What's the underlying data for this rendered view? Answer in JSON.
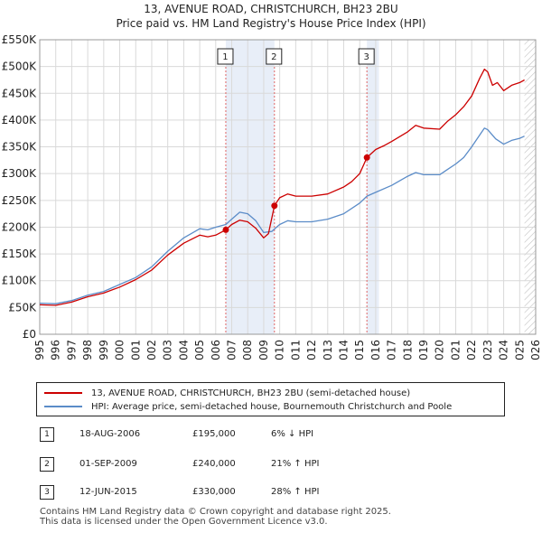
{
  "header": {
    "title": "13, AVENUE ROAD, CHRISTCHURCH, BH23 2BU",
    "subtitle": "Price paid vs. HM Land Registry's House Price Index (HPI)"
  },
  "colors": {
    "property_line": "#cc0000",
    "hpi_line": "#5b8cc8",
    "shade": "#e8eef8",
    "marker_line": "#e06666",
    "hatch": "#999999"
  },
  "chart_data": {
    "type": "line",
    "title": "Price paid vs. HM Land Registry's House Price Index (HPI)",
    "xlabel": "",
    "ylabel": "",
    "xlim": [
      1995,
      2026
    ],
    "ylim": [
      0,
      550000
    ],
    "grid": true,
    "x_ticks": [
      "1995",
      "1996",
      "1997",
      "1998",
      "1999",
      "2000",
      "2001",
      "2002",
      "2003",
      "2004",
      "2005",
      "2006",
      "2007",
      "2008",
      "2009",
      "2010",
      "2011",
      "2012",
      "2013",
      "2014",
      "2015",
      "2016",
      "2017",
      "2018",
      "2019",
      "2020",
      "2021",
      "2022",
      "2023",
      "2024",
      "2025",
      "2026"
    ],
    "y_ticks": [
      {
        "value": 0,
        "label": "£0"
      },
      {
        "value": 50000,
        "label": "£50K"
      },
      {
        "value": 100000,
        "label": "£100K"
      },
      {
        "value": 150000,
        "label": "£150K"
      },
      {
        "value": 200000,
        "label": "£200K"
      },
      {
        "value": 250000,
        "label": "£250K"
      },
      {
        "value": 300000,
        "label": "£300K"
      },
      {
        "value": 350000,
        "label": "£350K"
      },
      {
        "value": 400000,
        "label": "£400K"
      },
      {
        "value": 450000,
        "label": "£450K"
      },
      {
        "value": 500000,
        "label": "£500K"
      },
      {
        "value": 550000,
        "label": "£550K"
      }
    ],
    "series": [
      {
        "name": "13, AVENUE ROAD, CHRISTCHURCH, BH23 2BU (semi-detached house)",
        "color": "#cc0000",
        "points": [
          [
            1995.0,
            55000
          ],
          [
            1996.0,
            54000
          ],
          [
            1997.0,
            60000
          ],
          [
            1998.0,
            70000
          ],
          [
            1999.0,
            77000
          ],
          [
            2000.0,
            88000
          ],
          [
            2001.0,
            102000
          ],
          [
            2002.0,
            120000
          ],
          [
            2003.0,
            148000
          ],
          [
            2004.0,
            170000
          ],
          [
            2005.0,
            185000
          ],
          [
            2005.5,
            182000
          ],
          [
            2006.0,
            185000
          ],
          [
            2006.63,
            195000
          ],
          [
            2007.0,
            205000
          ],
          [
            2007.5,
            213000
          ],
          [
            2008.0,
            210000
          ],
          [
            2008.5,
            198000
          ],
          [
            2009.0,
            180000
          ],
          [
            2009.3,
            188000
          ],
          [
            2009.67,
            240000
          ],
          [
            2010.0,
            255000
          ],
          [
            2010.5,
            262000
          ],
          [
            2011.0,
            258000
          ],
          [
            2012.0,
            258000
          ],
          [
            2013.0,
            262000
          ],
          [
            2014.0,
            275000
          ],
          [
            2014.5,
            285000
          ],
          [
            2015.0,
            300000
          ],
          [
            2015.45,
            330000
          ],
          [
            2016.0,
            345000
          ],
          [
            2016.5,
            352000
          ],
          [
            2017.0,
            360000
          ],
          [
            2018.0,
            378000
          ],
          [
            2018.5,
            390000
          ],
          [
            2019.0,
            385000
          ],
          [
            2020.0,
            383000
          ],
          [
            2020.5,
            398000
          ],
          [
            2021.0,
            410000
          ],
          [
            2021.5,
            425000
          ],
          [
            2022.0,
            445000
          ],
          [
            2022.5,
            478000
          ],
          [
            2022.8,
            495000
          ],
          [
            2023.0,
            490000
          ],
          [
            2023.3,
            465000
          ],
          [
            2023.6,
            470000
          ],
          [
            2024.0,
            455000
          ],
          [
            2024.5,
            465000
          ],
          [
            2025.0,
            470000
          ],
          [
            2025.3,
            475000
          ]
        ]
      },
      {
        "name": "HPI: Average price, semi-detached house, Bournemouth Christchurch and Poole",
        "color": "#5b8cc8",
        "points": [
          [
            1995.0,
            58000
          ],
          [
            1996.0,
            57000
          ],
          [
            1997.0,
            63000
          ],
          [
            1998.0,
            73000
          ],
          [
            1999.0,
            80000
          ],
          [
            2000.0,
            93000
          ],
          [
            2001.0,
            106000
          ],
          [
            2002.0,
            126000
          ],
          [
            2003.0,
            155000
          ],
          [
            2004.0,
            180000
          ],
          [
            2005.0,
            197000
          ],
          [
            2005.5,
            195000
          ],
          [
            2006.0,
            200000
          ],
          [
            2006.63,
            205000
          ],
          [
            2007.0,
            215000
          ],
          [
            2007.5,
            228000
          ],
          [
            2008.0,
            225000
          ],
          [
            2008.5,
            212000
          ],
          [
            2009.0,
            190000
          ],
          [
            2009.5,
            192000
          ],
          [
            2010.0,
            205000
          ],
          [
            2010.5,
            212000
          ],
          [
            2011.0,
            210000
          ],
          [
            2012.0,
            210000
          ],
          [
            2013.0,
            215000
          ],
          [
            2014.0,
            225000
          ],
          [
            2015.0,
            245000
          ],
          [
            2015.45,
            258000
          ],
          [
            2016.0,
            265000
          ],
          [
            2017.0,
            278000
          ],
          [
            2018.0,
            295000
          ],
          [
            2018.5,
            302000
          ],
          [
            2019.0,
            298000
          ],
          [
            2020.0,
            298000
          ],
          [
            2020.5,
            308000
          ],
          [
            2021.0,
            318000
          ],
          [
            2021.5,
            330000
          ],
          [
            2022.0,
            350000
          ],
          [
            2022.5,
            372000
          ],
          [
            2022.8,
            385000
          ],
          [
            2023.0,
            382000
          ],
          [
            2023.5,
            365000
          ],
          [
            2024.0,
            355000
          ],
          [
            2024.5,
            362000
          ],
          [
            2025.0,
            366000
          ],
          [
            2025.3,
            370000
          ]
        ]
      }
    ],
    "annotations": [
      {
        "label": "1",
        "x": 2006.63,
        "price": 195000
      },
      {
        "label": "2",
        "x": 2009.67,
        "price": 240000
      },
      {
        "label": "3",
        "x": 2015.45,
        "price": 330000
      }
    ],
    "shaded_ranges": [
      [
        2006.63,
        2009.67
      ],
      [
        2015.45,
        2016.2
      ]
    ],
    "hatched_from": 2025.3
  },
  "legend": {
    "property_label": "13, AVENUE ROAD, CHRISTCHURCH, BH23 2BU (semi-detached house)",
    "hpi_label": "HPI: Average price, semi-detached house, Bournemouth Christchurch and Poole"
  },
  "sales": [
    {
      "num": "1",
      "date": "18-AUG-2006",
      "price": "£195,000",
      "hpi": "6% ↓ HPI"
    },
    {
      "num": "2",
      "date": "01-SEP-2009",
      "price": "£240,000",
      "hpi": "21% ↑ HPI"
    },
    {
      "num": "3",
      "date": "12-JUN-2015",
      "price": "£330,000",
      "hpi": "28% ↑ HPI"
    }
  ],
  "footer": {
    "line1": "Contains HM Land Registry data © Crown copyright and database right 2025.",
    "line2": "This data is licensed under the Open Government Licence v3.0."
  }
}
